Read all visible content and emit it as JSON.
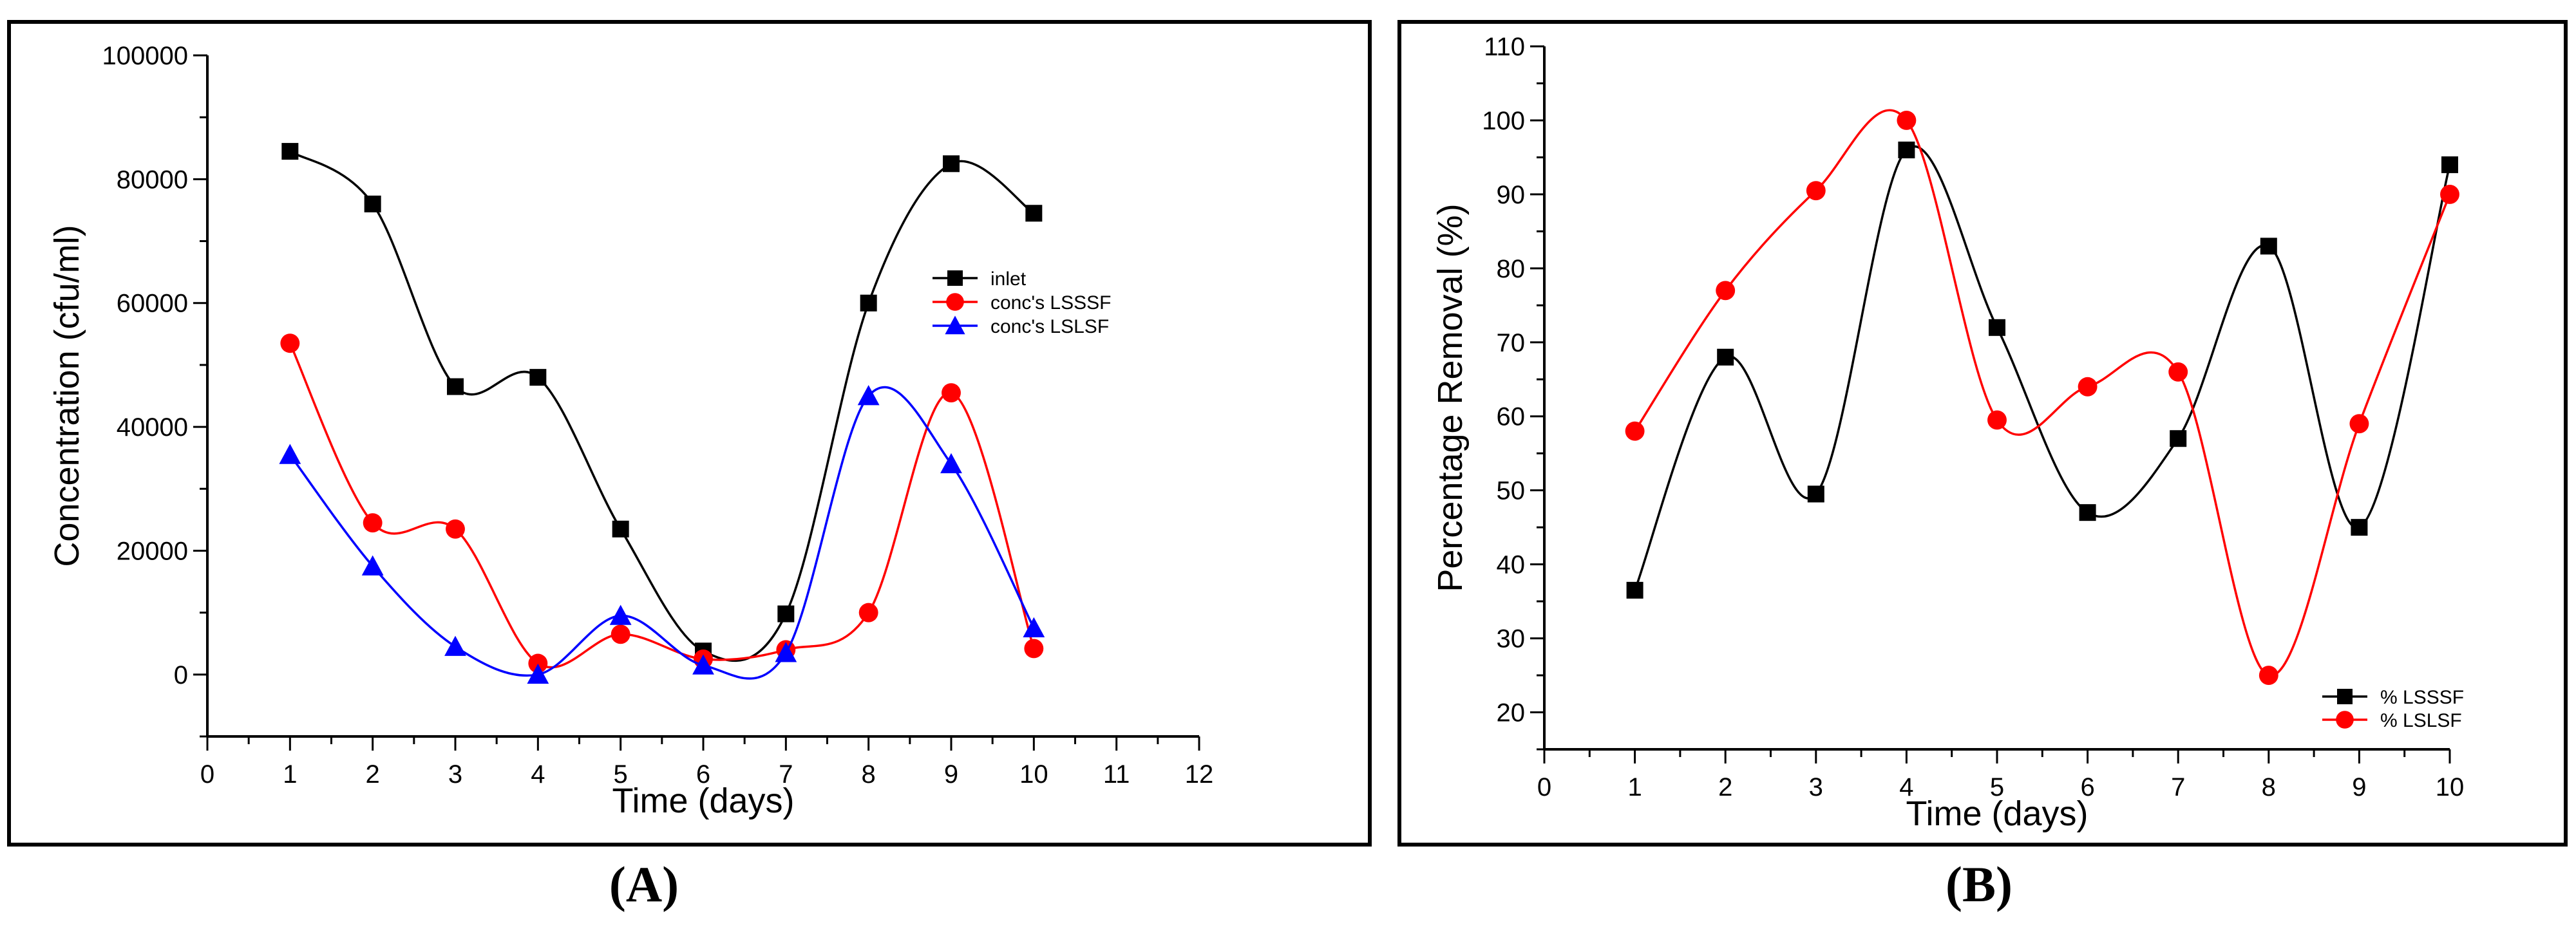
{
  "colors": {
    "black": "#000000",
    "red": "#ff0000",
    "blue": "#0000ff",
    "background": "#ffffff"
  },
  "panel_labels": {
    "A": "(A)",
    "B": "(B)"
  },
  "chart_data": [
    {
      "id": "A",
      "type": "line",
      "title": "",
      "xlabel": "Time (days)",
      "ylabel": "Concentration (cfu/ml)",
      "xlim": [
        0,
        12
      ],
      "ylim": [
        -10000,
        100000
      ],
      "xticks": [
        0,
        1,
        2,
        3,
        4,
        5,
        6,
        7,
        8,
        9,
        10,
        11,
        12
      ],
      "xtick_labels": [
        "0",
        "1",
        "2",
        "3",
        "4",
        "5",
        "6",
        "7",
        "8",
        "9",
        "10",
        "11",
        "12"
      ],
      "yticks": [
        0,
        20000,
        40000,
        60000,
        80000,
        100000
      ],
      "ytick_labels": [
        "0",
        "20000",
        "40000",
        "60000",
        "80000",
        "100000"
      ],
      "legend_position": "right",
      "series": [
        {
          "name": "inlet",
          "marker": "square",
          "color": "#000000",
          "x": [
            1,
            2,
            3,
            4,
            5,
            6,
            7,
            8,
            9,
            10
          ],
          "y": [
            84500,
            76000,
            46500,
            48000,
            23500,
            3800,
            9800,
            60000,
            82500,
            74500
          ]
        },
        {
          "name": "conc's LSSSF",
          "marker": "circle",
          "color": "#ff0000",
          "x": [
            1,
            2,
            3,
            4,
            5,
            6,
            7,
            8,
            9,
            10
          ],
          "y": [
            53500,
            24500,
            23500,
            1800,
            6500,
            2500,
            4000,
            10000,
            45500,
            4200
          ]
        },
        {
          "name": "conc's LSLSF",
          "marker": "triangle",
          "color": "#0000ff",
          "x": [
            1,
            2,
            3,
            4,
            5,
            6,
            7,
            8,
            9,
            10
          ],
          "y": [
            35500,
            17500,
            4500,
            0,
            9500,
            1500,
            3500,
            45000,
            34000,
            7500
          ]
        }
      ]
    },
    {
      "id": "B",
      "type": "line",
      "title": "",
      "xlabel": "Time (days)",
      "ylabel": "Percentage Removal (%)",
      "xlim": [
        0,
        10
      ],
      "ylim": [
        15,
        110
      ],
      "xticks": [
        0,
        1,
        2,
        3,
        4,
        5,
        6,
        7,
        8,
        9,
        10
      ],
      "xtick_labels": [
        "0",
        "1",
        "2",
        "3",
        "4",
        "5",
        "6",
        "7",
        "8",
        "9",
        "10"
      ],
      "yticks": [
        20,
        30,
        40,
        50,
        60,
        70,
        80,
        90,
        100,
        110
      ],
      "ytick_labels": [
        "20",
        "30",
        "40",
        "50",
        "60",
        "70",
        "80",
        "90",
        "100",
        "110"
      ],
      "legend_position": "bottom-right",
      "series": [
        {
          "name": "% LSSSF",
          "marker": "square",
          "color": "#000000",
          "x": [
            1,
            2,
            3,
            4,
            5,
            6,
            7,
            8,
            9,
            10
          ],
          "y": [
            36.5,
            68,
            49.5,
            96,
            72,
            47,
            57,
            83,
            45,
            94
          ]
        },
        {
          "name": "% LSLSF",
          "marker": "circle",
          "color": "#ff0000",
          "x": [
            1,
            2,
            3,
            4,
            5,
            6,
            7,
            8,
            9,
            10
          ],
          "y": [
            58,
            77,
            90.5,
            100,
            59.5,
            64,
            66,
            25,
            59,
            90
          ]
        }
      ]
    }
  ]
}
